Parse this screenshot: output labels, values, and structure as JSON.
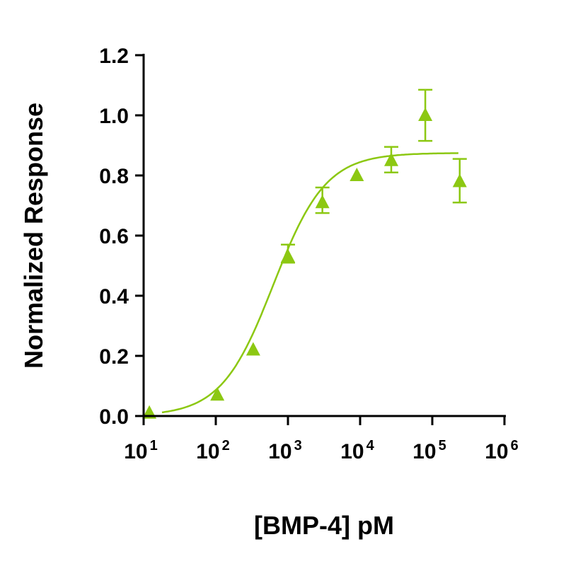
{
  "chart_data": {
    "type": "scatter",
    "title": "",
    "xlabel": "[BMP-4] pM",
    "ylabel": "Normalized Response",
    "xscale": "log",
    "xlim": [
      10,
      1000000
    ],
    "ylim": [
      0,
      1.2
    ],
    "xticks": [
      {
        "base": "10",
        "exp": "1",
        "value": 10
      },
      {
        "base": "10",
        "exp": "2",
        "value": 100
      },
      {
        "base": "10",
        "exp": "3",
        "value": 1000
      },
      {
        "base": "10",
        "exp": "4",
        "value": 10000
      },
      {
        "base": "10",
        "exp": "5",
        "value": 100000
      },
      {
        "base": "10",
        "exp": "6",
        "value": 1000000
      }
    ],
    "yticks": [
      "0.0",
      "0.2",
      "0.4",
      "0.6",
      "0.8",
      "1.0",
      "1.2"
    ],
    "grid": false,
    "color": "#8cc812",
    "marker": "triangle",
    "points": [
      {
        "x": 12,
        "y": 0.01
      },
      {
        "x": 105,
        "y": 0.07
      },
      {
        "x": 330,
        "y": 0.22
      },
      {
        "x": 1000,
        "y": 0.53,
        "err_low": 0.51,
        "err_high": 0.57
      },
      {
        "x": 3000,
        "y": 0.71,
        "err_low": 0.675,
        "err_high": 0.76
      },
      {
        "x": 9000,
        "y": 0.8
      },
      {
        "x": 27000,
        "y": 0.85,
        "err_low": 0.81,
        "err_high": 0.895
      },
      {
        "x": 80000,
        "y": 1.0,
        "err_low": 0.915,
        "err_high": 1.085
      },
      {
        "x": 240000,
        "y": 0.78,
        "err_low": 0.71,
        "err_high": 0.855
      }
    ],
    "fit": {
      "model": "4PL",
      "bottom": 0,
      "top": 0.875,
      "ec50": 630,
      "hill": 1.2,
      "xrange": [
        18,
        230000
      ]
    }
  }
}
